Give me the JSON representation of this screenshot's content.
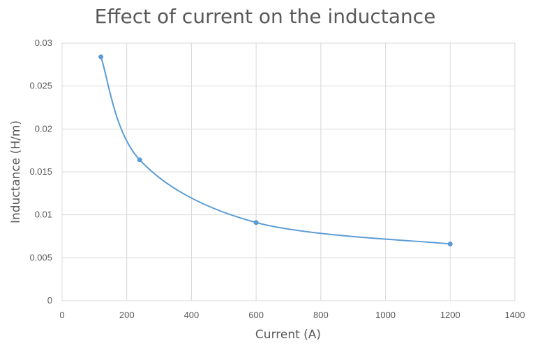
{
  "chart_data": {
    "type": "scatter",
    "title": "Effect of current on the inductance",
    "xlabel": "Current (A)",
    "ylabel": "Inductance (H/m)",
    "xlim": [
      0,
      1400
    ],
    "ylim": [
      0,
      0.03
    ],
    "x_ticks": [
      "0",
      "200",
      "400",
      "600",
      "800",
      "1000",
      "1200",
      "1400"
    ],
    "y_ticks": [
      "0",
      "0.005",
      "0.01",
      "0.015",
      "0.02",
      "0.025",
      "0.03"
    ],
    "grid": true,
    "smooth_line": true,
    "series": [
      {
        "color": "#5b9bd5",
        "points": [
          {
            "x": 120,
            "y": 0.0284
          },
          {
            "x": 240,
            "y": 0.0164
          },
          {
            "x": 600,
            "y": 0.0091
          },
          {
            "x": 1200,
            "y": 0.0066
          }
        ]
      }
    ]
  }
}
